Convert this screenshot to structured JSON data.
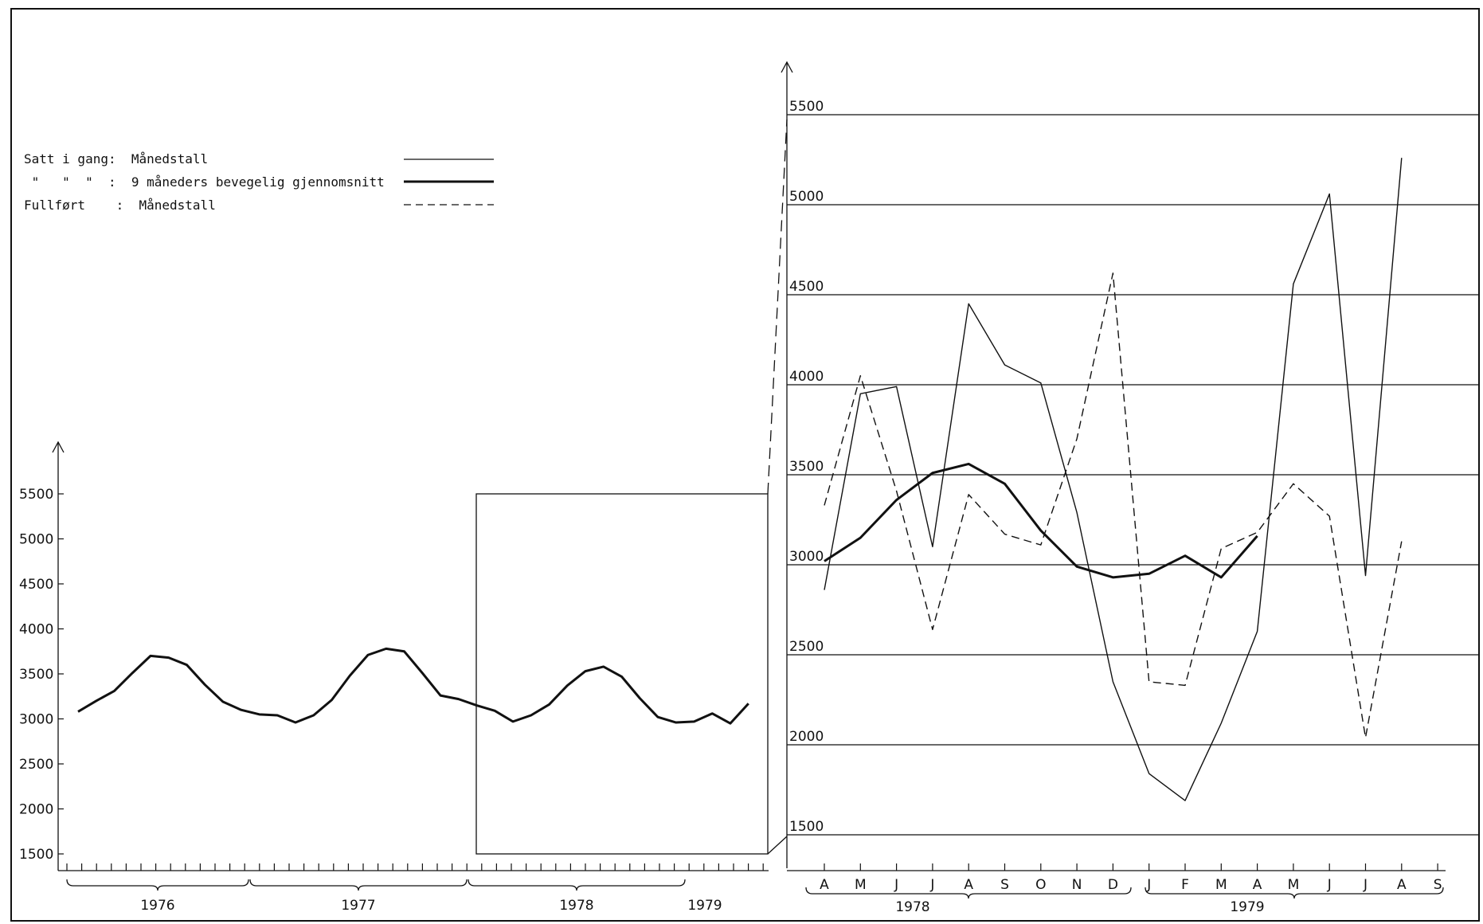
{
  "legend": [
    {
      "label": "Satt i gang:  Månedstall",
      "style": "thin"
    },
    {
      "label": " \"   \"  \"  :  9 måneders bevegelig gjennomsnitt",
      "style": "thick"
    },
    {
      "label": "Fullført    :  Månedstall",
      "style": "dashed"
    }
  ],
  "chart_data": [
    {
      "type": "line",
      "title": "",
      "xlabel": "",
      "ylabel": "",
      "ylim": [
        1500,
        5500
      ],
      "yticks": [
        "1500",
        "2000",
        "2500",
        "3000",
        "3500",
        "4000",
        "4500",
        "5000",
        "5500"
      ],
      "year_labels": [
        "1976",
        "1977",
        "1978",
        "1979"
      ],
      "x_start": "1976-01",
      "series": [
        {
          "style": "thick",
          "values": [
            3080,
            3200,
            3310,
            3510,
            3700,
            3680,
            3600,
            3380,
            3190,
            3100,
            3050,
            3040,
            2960,
            3040,
            3210,
            3480,
            3710,
            3780,
            3750,
            3510,
            3260,
            3220,
            3150,
            3090,
            2970,
            3040,
            3160,
            3370,
            3530,
            3580,
            3470,
            3230,
            3020,
            2960,
            2970,
            3060,
            2950,
            3170
          ]
        }
      ]
    },
    {
      "type": "line",
      "title": "",
      "xlabel": "",
      "ylabel": "",
      "ylim": [
        1500,
        5500
      ],
      "gridlines": [
        "1500",
        "2000",
        "2500",
        "3000",
        "3500",
        "4000",
        "4500",
        "5000",
        "5500"
      ],
      "grid": true,
      "categories": [
        "A",
        "M",
        "J",
        "J",
        "A",
        "S",
        "O",
        "N",
        "D",
        "J",
        "F",
        "M",
        "A",
        "M",
        "J",
        "J",
        "A",
        "S"
      ],
      "year_labels": [
        "1978",
        "1979"
      ],
      "series": [
        {
          "style": "thin",
          "values": [
            2860,
            3950,
            3990,
            3100,
            4450,
            4110,
            4010,
            3290,
            2350,
            1840,
            1690,
            2120,
            2630,
            4560,
            5060,
            2940,
            5260,
            null
          ]
        },
        {
          "style": "thick",
          "values": [
            3020,
            3150,
            3360,
            3510,
            3560,
            3450,
            3190,
            2990,
            2930,
            2950,
            3050,
            2930,
            3160,
            null,
            null,
            null,
            null,
            null
          ]
        },
        {
          "style": "dashed",
          "values": [
            3330,
            4050,
            3410,
            2640,
            3390,
            3170,
            3110,
            3700,
            4620,
            2350,
            2330,
            3090,
            3180,
            3450,
            3270,
            2040,
            3130,
            null
          ]
        }
      ]
    }
  ]
}
